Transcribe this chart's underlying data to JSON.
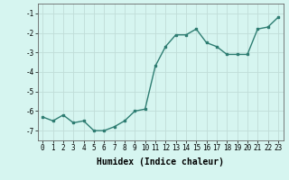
{
  "x": [
    0,
    1,
    2,
    3,
    4,
    5,
    6,
    7,
    8,
    9,
    10,
    11,
    12,
    13,
    14,
    15,
    16,
    17,
    18,
    19,
    20,
    21,
    22,
    23
  ],
  "y": [
    -6.3,
    -6.5,
    -6.2,
    -6.6,
    -6.5,
    -7.0,
    -7.0,
    -6.8,
    -6.5,
    -6.0,
    -5.9,
    -3.7,
    -2.7,
    -2.1,
    -2.1,
    -1.8,
    -2.5,
    -2.7,
    -3.1,
    -3.1,
    -3.1,
    -1.8,
    -1.7,
    -1.2
  ],
  "line_color": "#2e7d72",
  "marker": "s",
  "marker_size": 1.8,
  "background_color": "#d6f5f0",
  "grid_color": "#c0ddd8",
  "xlabel": "Humidex (Indice chaleur)",
  "xlabel_fontsize": 7,
  "xlim": [
    -0.5,
    23.5
  ],
  "ylim": [
    -7.5,
    -0.5
  ],
  "yticks": [
    -7,
    -6,
    -5,
    -4,
    -3,
    -2,
    -1
  ],
  "xticks": [
    0,
    1,
    2,
    3,
    4,
    5,
    6,
    7,
    8,
    9,
    10,
    11,
    12,
    13,
    14,
    15,
    16,
    17,
    18,
    19,
    20,
    21,
    22,
    23
  ],
  "tick_fontsize": 5.5,
  "line_width": 1.0
}
